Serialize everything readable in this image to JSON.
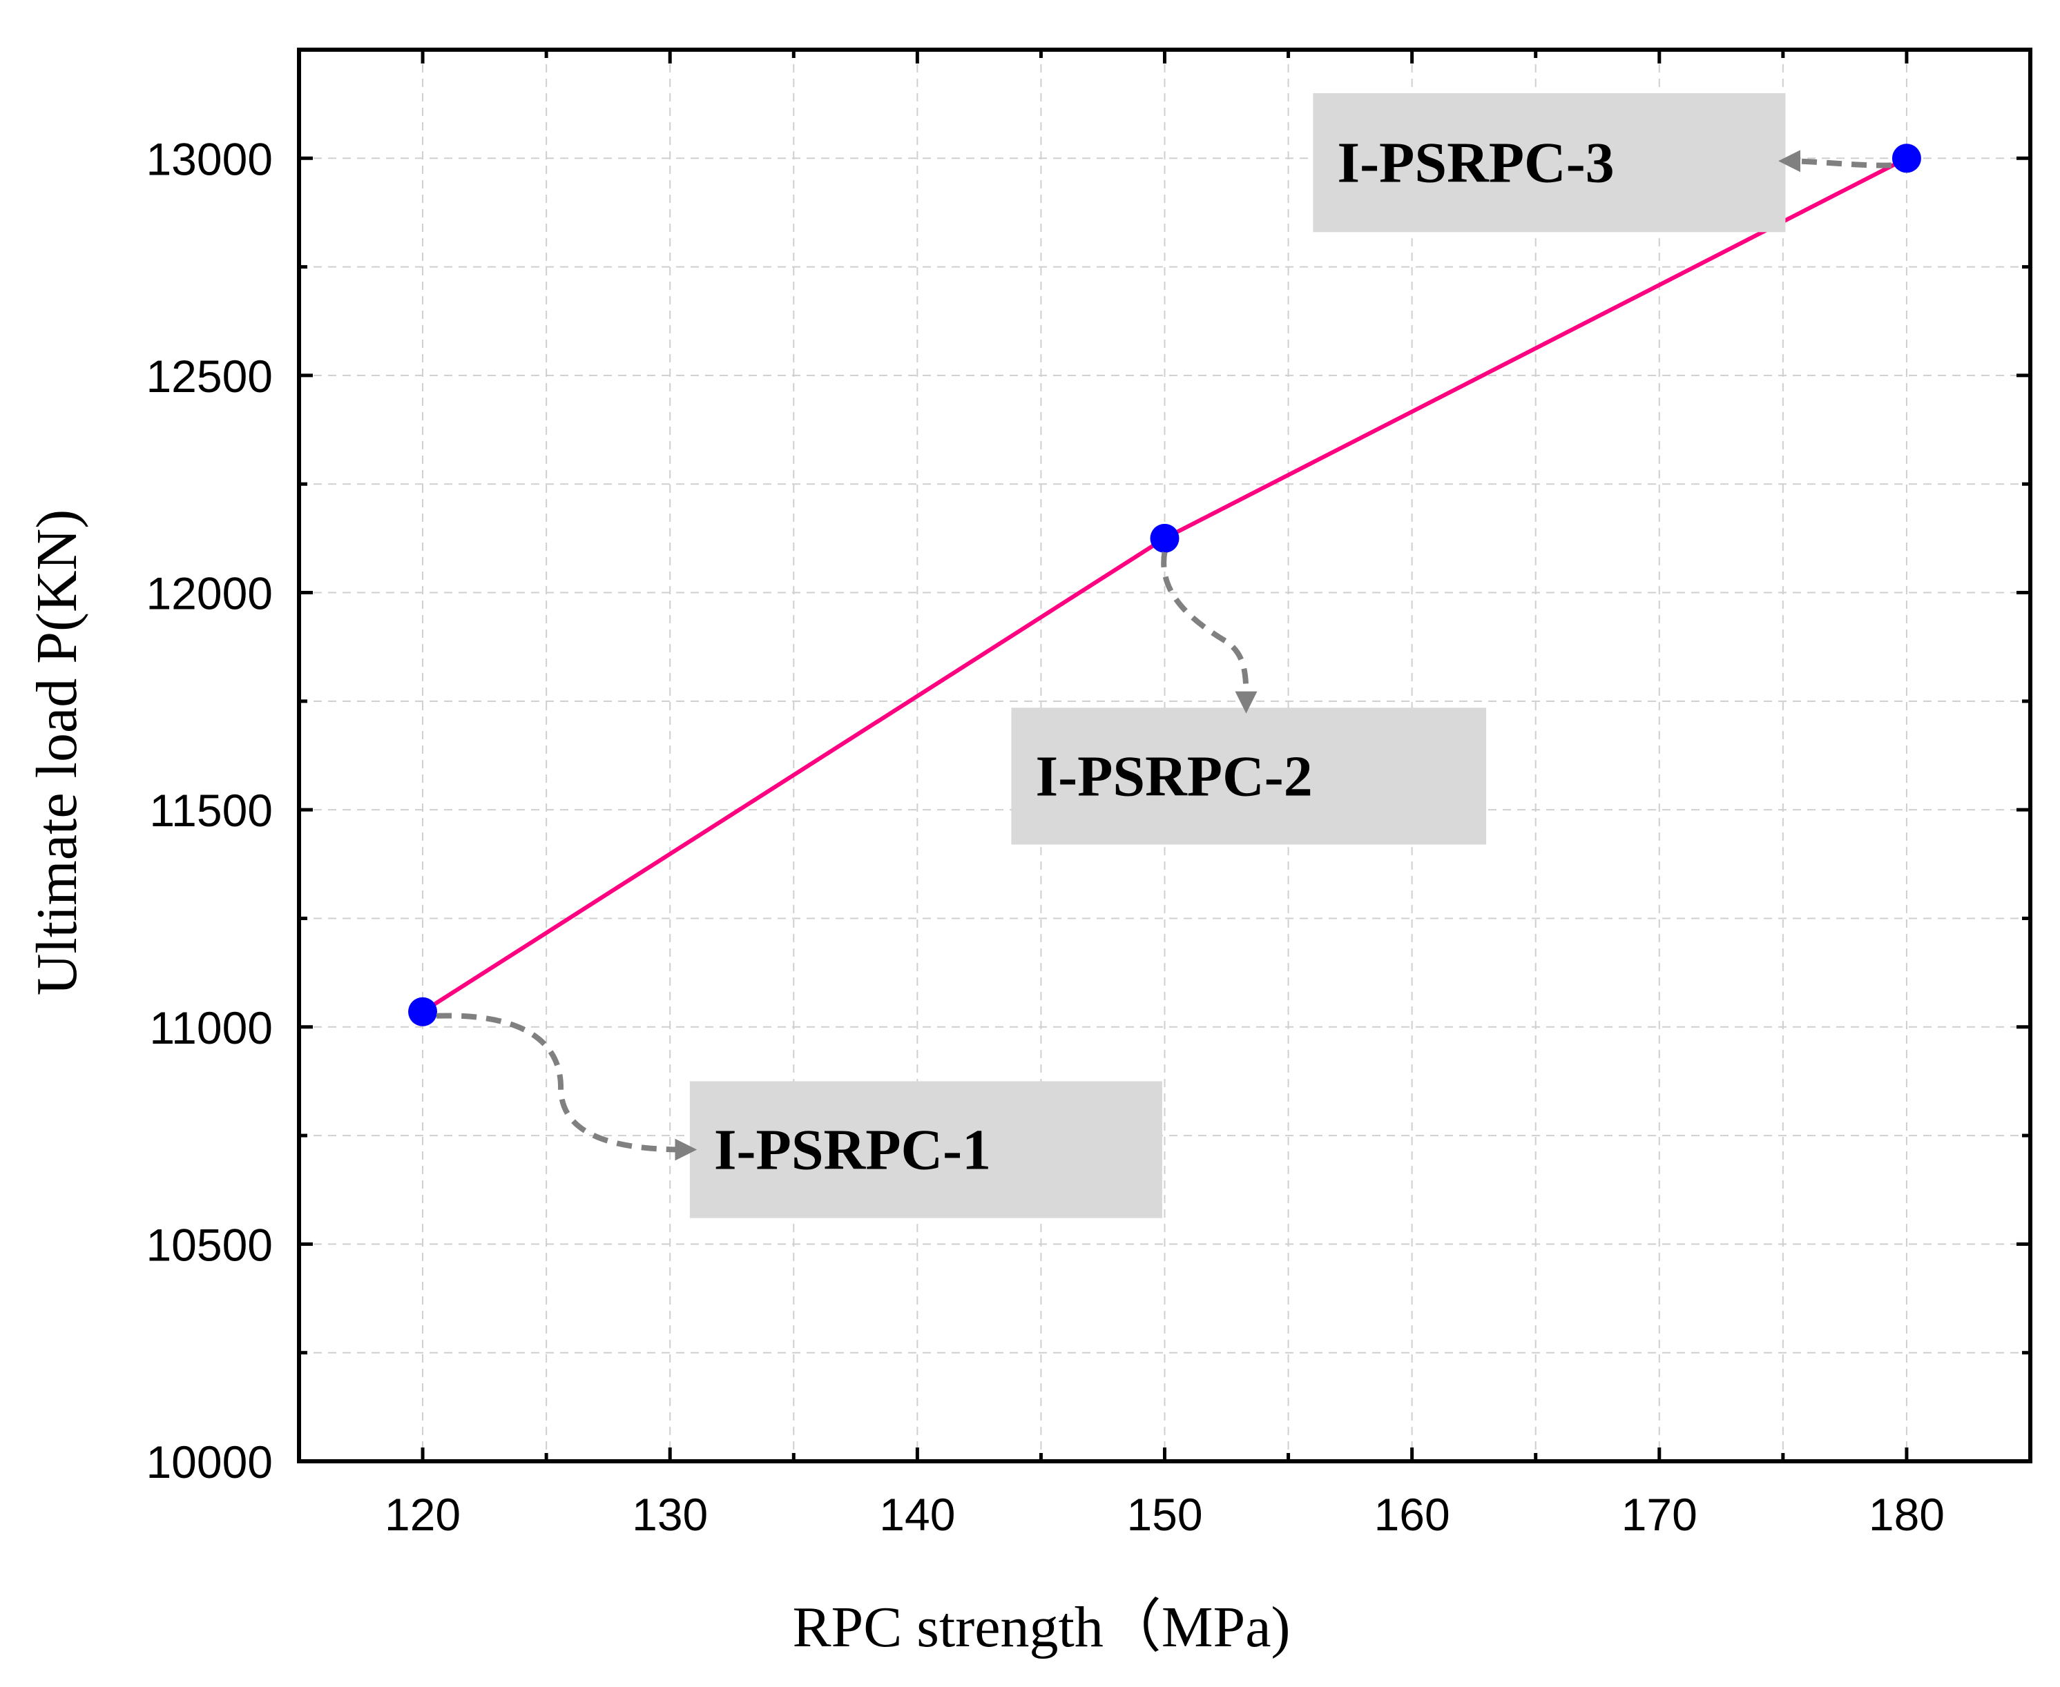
{
  "chart_data": {
    "type": "line",
    "title": "",
    "xlabel": "RPC strength（MPa)",
    "ylabel": "Ultimate load P(KN)",
    "xlim": [
      115,
      185
    ],
    "ylim": [
      10000,
      13250
    ],
    "xticks": [
      120,
      130,
      140,
      150,
      160,
      170,
      180
    ],
    "xtick_labels": [
      "120",
      "130",
      "140",
      "150",
      "160",
      "170",
      "180"
    ],
    "x_minor_step": 5,
    "yticks": [
      10000,
      10500,
      11000,
      11500,
      12000,
      12500,
      13000
    ],
    "ytick_labels": [
      "10000",
      "10500",
      "11000",
      "11500",
      "12000",
      "12500",
      "13000"
    ],
    "y_minor_step": 250,
    "grid": true,
    "series": [
      {
        "name": "Ultimate load",
        "x": [
          120,
          150,
          180
        ],
        "y": [
          11035,
          12125,
          13000
        ],
        "line_color": "#ff0080",
        "marker_color": "#0000ff"
      }
    ],
    "annotations": [
      {
        "text": "I-PSRPC-1",
        "point": [
          120,
          11035
        ],
        "box_x": [
          130.8,
          149.9
        ],
        "box_y": [
          10560,
          10875
        ]
      },
      {
        "text": "I-PSRPC-2",
        "point": [
          150,
          12125
        ],
        "box_x": [
          143.8,
          163
        ],
        "box_y": [
          11420,
          11735
        ]
      },
      {
        "text": "I-PSRPC-3",
        "point": [
          180,
          13000
        ],
        "box_x": [
          156,
          175.1
        ],
        "box_y": [
          12830,
          13150
        ]
      }
    ]
  }
}
